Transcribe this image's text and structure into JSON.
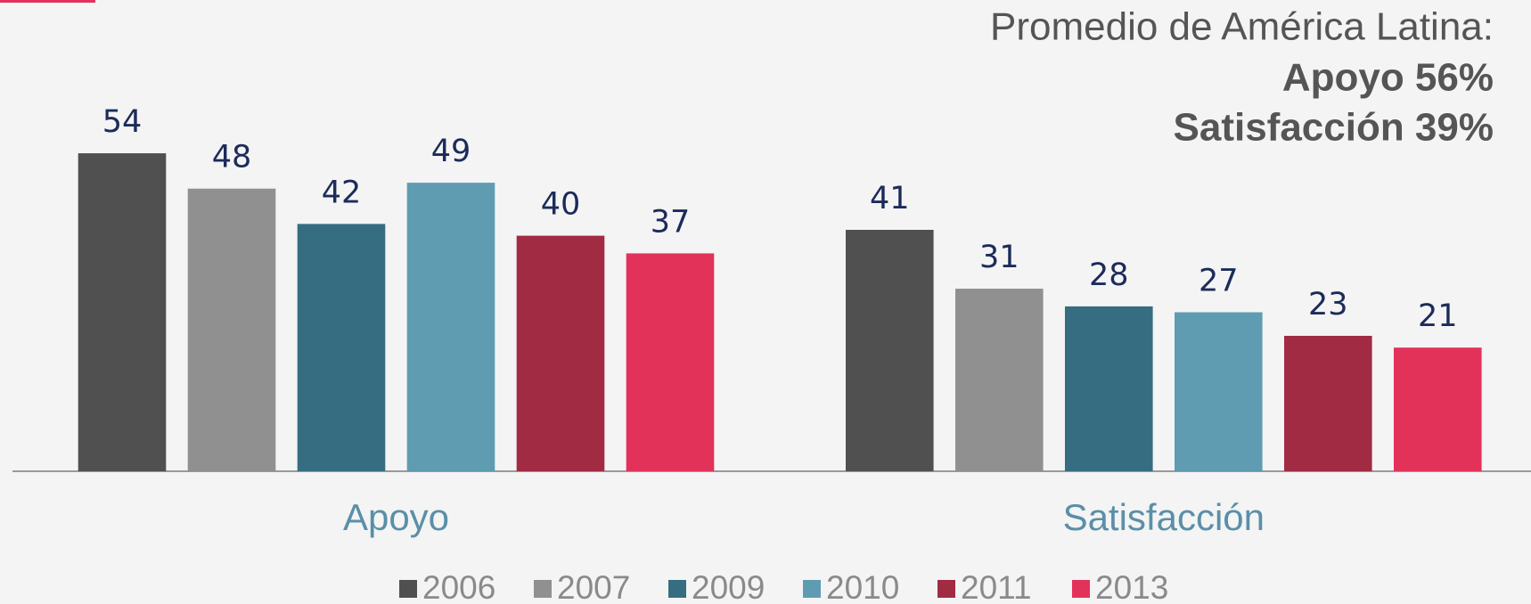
{
  "chart_data": {
    "type": "bar",
    "annotations": [
      "Promedio de América Latina:",
      "Apoyo 56%",
      "Satisfacción 39%"
    ],
    "categories": [
      "Apoyo",
      "Satisfacción"
    ],
    "series": [
      {
        "name": "2006",
        "color": "#505050",
        "values": [
          54,
          41
        ]
      },
      {
        "name": "2007",
        "color": "#909090",
        "values": [
          48,
          31
        ]
      },
      {
        "name": "2009",
        "color": "#376d80",
        "values": [
          42,
          28
        ]
      },
      {
        "name": "2010",
        "color": "#5f9cb2",
        "values": [
          49,
          27
        ]
      },
      {
        "name": "2011",
        "color": "#a12b42",
        "values": [
          40,
          23
        ]
      },
      {
        "name": "2013",
        "color": "#e3325a",
        "values": [
          37,
          21
        ]
      }
    ]
  }
}
